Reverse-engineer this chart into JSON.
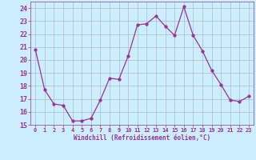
{
  "x": [
    0,
    1,
    2,
    3,
    4,
    5,
    6,
    7,
    8,
    9,
    10,
    11,
    12,
    13,
    14,
    15,
    16,
    17,
    18,
    19,
    20,
    21,
    22,
    23
  ],
  "y": [
    20.8,
    17.7,
    16.6,
    16.5,
    15.3,
    15.3,
    15.5,
    16.9,
    18.6,
    18.5,
    20.3,
    22.7,
    22.8,
    23.4,
    22.6,
    21.9,
    24.1,
    21.9,
    20.7,
    19.2,
    18.1,
    16.9,
    16.8,
    17.2
  ],
  "line_color": "#993399",
  "marker": "o",
  "marker_size": 2.5,
  "bg_color": "#cceeff",
  "grid_color": "#aabbcc",
  "xlabel": "Windchill (Refroidissement éolien,°C)",
  "xlabel_color": "#993399",
  "tick_color": "#993399",
  "ylim": [
    15,
    24.5
  ],
  "xlim": [
    -0.5,
    23.5
  ],
  "yticks": [
    15,
    16,
    17,
    18,
    19,
    20,
    21,
    22,
    23,
    24
  ],
  "xticks": [
    0,
    1,
    2,
    3,
    4,
    5,
    6,
    7,
    8,
    9,
    10,
    11,
    12,
    13,
    14,
    15,
    16,
    17,
    18,
    19,
    20,
    21,
    22,
    23
  ],
  "xtick_labels": [
    "0",
    "1",
    "2",
    "3",
    "4",
    "5",
    "6",
    "7",
    "8",
    "9",
    "10",
    "11",
    "12",
    "13",
    "14",
    "15",
    "16",
    "17",
    "18",
    "19",
    "20",
    "21",
    "22",
    "23"
  ]
}
